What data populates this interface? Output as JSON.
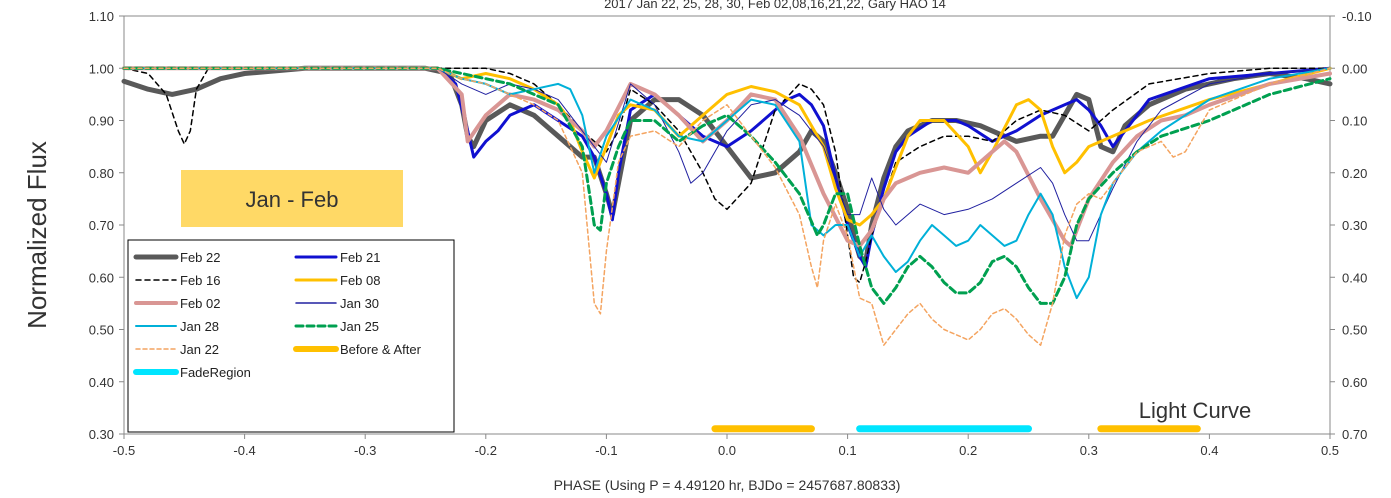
{
  "chart_data": {
    "type": "line",
    "title": "2017 Jan 22, 25, 28, 30, Feb 02,08,16,21,22, Gary HAO 14",
    "xlabel": "PHASE (Using P = 4.49120 hr, BJDo = 2457687.80833)",
    "ylabel": "Normalized Flux",
    "xlim": [
      -0.5,
      0.5
    ],
    "ylim": [
      0.3,
      1.1
    ],
    "y2lim": [
      -0.1,
      0.7
    ],
    "grid": false,
    "reference_line_y": 1.0,
    "x_tick_labels": [
      "-0.5",
      "-0.4",
      "-0.3",
      "-0.2",
      "-0.1",
      "0.0",
      "0.1",
      "0.2",
      "0.3",
      "0.4",
      "0.5"
    ],
    "y_tick_labels": [
      "0.30",
      "0.40",
      "0.50",
      "0.60",
      "0.70",
      "0.80",
      "0.90",
      "1.00",
      "1.10"
    ],
    "y2_tick_labels": [
      "0.70",
      "0.60",
      "0.50",
      "0.40",
      "0.30",
      "0.20",
      "0.10",
      "0.00",
      "-0.10"
    ],
    "legend_position": "bottom-left",
    "annotations": [
      {
        "text": "Jan - Feb",
        "x": -0.35,
        "y": 0.755,
        "box_color": "#FFD966"
      },
      {
        "text": "Light Curve",
        "x": 0.365,
        "y": 0.345
      }
    ],
    "bands": [
      {
        "name": "Before & After",
        "color": "#FFC000",
        "y": 0.31,
        "ranges": [
          [
            -0.01,
            0.07
          ],
          [
            0.31,
            0.39
          ]
        ]
      },
      {
        "name": "FadeRegion",
        "color": "#00E5FF",
        "y": 0.31,
        "ranges": [
          [
            0.11,
            0.25
          ]
        ]
      }
    ],
    "series": [
      {
        "name": "Feb 22",
        "color": "#595959",
        "width": 5,
        "dash": "",
        "x": [
          -0.5,
          -0.48,
          -0.46,
          -0.44,
          -0.42,
          -0.4,
          -0.35,
          -0.3,
          -0.25,
          -0.23,
          -0.22,
          -0.215,
          -0.21,
          -0.2,
          -0.18,
          -0.16,
          -0.14,
          -0.12,
          -0.11,
          -0.1,
          -0.095,
          -0.09,
          -0.08,
          -0.06,
          -0.04,
          -0.02,
          0.0,
          0.02,
          0.04,
          0.06,
          0.07,
          0.08,
          0.09,
          0.1,
          0.105,
          0.11,
          0.115,
          0.12,
          0.13,
          0.14,
          0.15,
          0.17,
          0.19,
          0.21,
          0.22,
          0.24,
          0.26,
          0.27,
          0.28,
          0.29,
          0.3,
          0.31,
          0.32,
          0.33,
          0.35,
          0.38,
          0.42,
          0.45,
          0.48,
          0.5
        ],
        "y": [
          0.975,
          0.96,
          0.95,
          0.96,
          0.98,
          0.99,
          1.0,
          1.0,
          1.0,
          0.99,
          0.93,
          0.87,
          0.85,
          0.9,
          0.93,
          0.91,
          0.87,
          0.83,
          0.83,
          0.76,
          0.72,
          0.78,
          0.9,
          0.94,
          0.94,
          0.91,
          0.85,
          0.79,
          0.8,
          0.84,
          0.88,
          0.86,
          0.8,
          0.73,
          0.68,
          0.64,
          0.63,
          0.7,
          0.79,
          0.85,
          0.88,
          0.9,
          0.9,
          0.89,
          0.88,
          0.86,
          0.87,
          0.87,
          0.91,
          0.95,
          0.94,
          0.85,
          0.84,
          0.89,
          0.93,
          0.96,
          0.98,
          0.99,
          0.98,
          0.97
        ]
      },
      {
        "name": "Feb 21",
        "color": "#1010D0",
        "width": 3,
        "dash": "",
        "x": [
          -0.5,
          -0.4,
          -0.3,
          -0.24,
          -0.225,
          -0.215,
          -0.21,
          -0.2,
          -0.19,
          -0.18,
          -0.16,
          -0.14,
          -0.12,
          -0.11,
          -0.1,
          -0.095,
          -0.09,
          -0.08,
          -0.06,
          -0.04,
          -0.02,
          0.0,
          0.02,
          0.04,
          0.05,
          0.06,
          0.07,
          0.08,
          0.09,
          0.1,
          0.11,
          0.115,
          0.12,
          0.13,
          0.14,
          0.15,
          0.17,
          0.19,
          0.2,
          0.22,
          0.24,
          0.26,
          0.28,
          0.29,
          0.3,
          0.31,
          0.32,
          0.35,
          0.4,
          0.45,
          0.5
        ],
        "y": [
          1.0,
          1.0,
          1.0,
          1.0,
          0.97,
          0.88,
          0.83,
          0.86,
          0.88,
          0.91,
          0.93,
          0.9,
          0.87,
          0.83,
          0.76,
          0.71,
          0.8,
          0.92,
          0.95,
          0.91,
          0.87,
          0.85,
          0.88,
          0.92,
          0.94,
          0.95,
          0.93,
          0.89,
          0.79,
          0.7,
          0.64,
          0.62,
          0.68,
          0.77,
          0.84,
          0.87,
          0.9,
          0.9,
          0.89,
          0.86,
          0.88,
          0.91,
          0.93,
          0.94,
          0.92,
          0.89,
          0.85,
          0.94,
          0.98,
          0.99,
          1.0
        ]
      },
      {
        "name": "Feb 16",
        "color": "#000000",
        "width": 1.5,
        "dash": "5,4",
        "x": [
          -0.5,
          -0.48,
          -0.465,
          -0.455,
          -0.45,
          -0.445,
          -0.44,
          -0.43,
          -0.4,
          -0.3,
          -0.25,
          -0.2,
          -0.18,
          -0.16,
          -0.14,
          -0.12,
          -0.1,
          -0.09,
          -0.08,
          -0.06,
          -0.04,
          -0.02,
          -0.01,
          0.0,
          0.02,
          0.04,
          0.06,
          0.07,
          0.08,
          0.09,
          0.1,
          0.105,
          0.11,
          0.115,
          0.12,
          0.13,
          0.14,
          0.16,
          0.18,
          0.2,
          0.22,
          0.24,
          0.26,
          0.28,
          0.3,
          0.32,
          0.35,
          0.4,
          0.45,
          0.5
        ],
        "y": [
          1.0,
          0.99,
          0.95,
          0.88,
          0.855,
          0.88,
          0.96,
          1.0,
          1.0,
          1.0,
          1.0,
          1.0,
          0.99,
          0.97,
          0.93,
          0.88,
          0.84,
          0.88,
          0.96,
          0.93,
          0.88,
          0.8,
          0.75,
          0.73,
          0.78,
          0.92,
          0.97,
          0.96,
          0.93,
          0.84,
          0.68,
          0.6,
          0.59,
          0.63,
          0.68,
          0.75,
          0.82,
          0.85,
          0.87,
          0.87,
          0.86,
          0.9,
          0.92,
          0.91,
          0.88,
          0.92,
          0.97,
          0.99,
          1.0,
          1.0
        ]
      },
      {
        "name": "Feb 08",
        "color": "#FFC000",
        "width": 3,
        "dash": "",
        "x": [
          -0.5,
          -0.4,
          -0.3,
          -0.24,
          -0.22,
          -0.2,
          -0.18,
          -0.16,
          -0.14,
          -0.13,
          -0.12,
          -0.11,
          -0.1,
          -0.09,
          -0.08,
          -0.06,
          -0.04,
          -0.02,
          0.0,
          0.02,
          0.04,
          0.06,
          0.08,
          0.09,
          0.1,
          0.11,
          0.12,
          0.13,
          0.14,
          0.15,
          0.16,
          0.18,
          0.2,
          0.21,
          0.22,
          0.24,
          0.25,
          0.26,
          0.27,
          0.28,
          0.29,
          0.3,
          0.31,
          0.33,
          0.35,
          0.4,
          0.45,
          0.5
        ],
        "y": [
          1.0,
          1.0,
          1.0,
          1.0,
          0.98,
          0.99,
          0.98,
          0.96,
          0.93,
          0.9,
          0.84,
          0.79,
          0.85,
          0.91,
          0.93,
          0.92,
          0.87,
          0.91,
          0.95,
          0.965,
          0.955,
          0.93,
          0.85,
          0.77,
          0.71,
          0.7,
          0.72,
          0.75,
          0.81,
          0.87,
          0.9,
          0.9,
          0.85,
          0.8,
          0.84,
          0.93,
          0.94,
          0.92,
          0.85,
          0.8,
          0.82,
          0.85,
          0.86,
          0.88,
          0.9,
          0.94,
          0.97,
          1.0
        ]
      },
      {
        "name": "Feb 02",
        "color": "#D99694",
        "width": 4,
        "dash": "",
        "x": [
          -0.5,
          -0.4,
          -0.3,
          -0.24,
          -0.22,
          -0.215,
          -0.2,
          -0.18,
          -0.16,
          -0.14,
          -0.12,
          -0.11,
          -0.1,
          -0.08,
          -0.06,
          -0.04,
          -0.02,
          0.0,
          0.02,
          0.04,
          0.06,
          0.08,
          0.1,
          0.11,
          0.12,
          0.13,
          0.14,
          0.15,
          0.16,
          0.18,
          0.2,
          0.22,
          0.23,
          0.24,
          0.26,
          0.28,
          0.285,
          0.29,
          0.3,
          0.32,
          0.34,
          0.36,
          0.38,
          0.4,
          0.45,
          0.5
        ],
        "y": [
          1.0,
          1.0,
          1.0,
          1.0,
          0.95,
          0.86,
          0.91,
          0.95,
          0.94,
          0.92,
          0.88,
          0.85,
          0.88,
          0.97,
          0.95,
          0.91,
          0.86,
          0.9,
          0.95,
          0.94,
          0.87,
          0.76,
          0.67,
          0.66,
          0.69,
          0.75,
          0.78,
          0.79,
          0.8,
          0.81,
          0.8,
          0.84,
          0.86,
          0.84,
          0.75,
          0.67,
          0.66,
          0.69,
          0.75,
          0.82,
          0.87,
          0.9,
          0.91,
          0.93,
          0.97,
          0.99
        ]
      },
      {
        "name": "Jan 30",
        "color": "#2020A0",
        "width": 1,
        "dash": "",
        "x": [
          -0.5,
          -0.4,
          -0.3,
          -0.24,
          -0.22,
          -0.2,
          -0.18,
          -0.16,
          -0.14,
          -0.12,
          -0.1,
          -0.08,
          -0.06,
          -0.04,
          -0.03,
          -0.02,
          0.0,
          0.02,
          0.04,
          0.06,
          0.08,
          0.1,
          0.11,
          0.12,
          0.13,
          0.14,
          0.15,
          0.16,
          0.18,
          0.2,
          0.22,
          0.24,
          0.26,
          0.27,
          0.28,
          0.29,
          0.3,
          0.32,
          0.34,
          0.36,
          0.4,
          0.45,
          0.5
        ],
        "y": [
          1.0,
          1.0,
          1.0,
          1.0,
          0.97,
          0.95,
          0.97,
          0.96,
          0.94,
          0.88,
          0.82,
          0.97,
          0.93,
          0.84,
          0.78,
          0.8,
          0.88,
          0.93,
          0.94,
          0.91,
          0.85,
          0.72,
          0.72,
          0.79,
          0.73,
          0.7,
          0.72,
          0.74,
          0.72,
          0.73,
          0.75,
          0.78,
          0.81,
          0.78,
          0.72,
          0.67,
          0.67,
          0.77,
          0.86,
          0.92,
          0.97,
          0.99,
          1.0
        ]
      },
      {
        "name": "Jan 28",
        "color": "#00B0D8",
        "width": 2,
        "dash": "",
        "x": [
          -0.5,
          -0.4,
          -0.3,
          -0.24,
          -0.22,
          -0.2,
          -0.18,
          -0.16,
          -0.14,
          -0.13,
          -0.12,
          -0.11,
          -0.1,
          -0.08,
          -0.06,
          -0.04,
          -0.02,
          0.0,
          0.02,
          0.04,
          0.06,
          0.07,
          0.08,
          0.09,
          0.1,
          0.11,
          0.12,
          0.13,
          0.14,
          0.15,
          0.16,
          0.17,
          0.18,
          0.19,
          0.2,
          0.21,
          0.22,
          0.23,
          0.24,
          0.25,
          0.26,
          0.27,
          0.28,
          0.29,
          0.3,
          0.31,
          0.32,
          0.34,
          0.36,
          0.4,
          0.45,
          0.5
        ],
        "y": [
          1.0,
          1.0,
          1.0,
          1.0,
          0.98,
          0.97,
          0.95,
          0.96,
          0.97,
          0.96,
          0.91,
          0.8,
          0.87,
          0.94,
          0.92,
          0.87,
          0.86,
          0.9,
          0.94,
          0.93,
          0.86,
          0.7,
          0.68,
          0.7,
          0.7,
          0.64,
          0.68,
          0.64,
          0.61,
          0.63,
          0.67,
          0.7,
          0.68,
          0.66,
          0.67,
          0.7,
          0.68,
          0.66,
          0.67,
          0.72,
          0.76,
          0.72,
          0.62,
          0.56,
          0.6,
          0.72,
          0.78,
          0.84,
          0.88,
          0.94,
          0.98,
          1.0
        ]
      },
      {
        "name": "Jan 25",
        "color": "#00A050",
        "width": 3,
        "dash": "7,4",
        "x": [
          -0.5,
          -0.4,
          -0.3,
          -0.24,
          -0.22,
          -0.2,
          -0.18,
          -0.16,
          -0.14,
          -0.12,
          -0.11,
          -0.105,
          -0.1,
          -0.09,
          -0.08,
          -0.06,
          -0.04,
          -0.02,
          0.0,
          0.02,
          0.04,
          0.06,
          0.075,
          0.08,
          0.09,
          0.1,
          0.11,
          0.12,
          0.13,
          0.14,
          0.15,
          0.16,
          0.17,
          0.18,
          0.19,
          0.2,
          0.21,
          0.22,
          0.23,
          0.24,
          0.25,
          0.26,
          0.27,
          0.28,
          0.29,
          0.3,
          0.32,
          0.34,
          0.36,
          0.4,
          0.45,
          0.5
        ],
        "y": [
          1.0,
          1.0,
          1.0,
          1.0,
          0.99,
          0.98,
          0.97,
          0.95,
          0.93,
          0.85,
          0.7,
          0.69,
          0.78,
          0.85,
          0.9,
          0.9,
          0.86,
          0.89,
          0.91,
          0.87,
          0.82,
          0.76,
          0.68,
          0.7,
          0.76,
          0.76,
          0.66,
          0.58,
          0.55,
          0.58,
          0.62,
          0.64,
          0.62,
          0.59,
          0.57,
          0.57,
          0.59,
          0.63,
          0.64,
          0.62,
          0.58,
          0.55,
          0.55,
          0.6,
          0.7,
          0.75,
          0.8,
          0.84,
          0.87,
          0.9,
          0.95,
          0.98
        ]
      },
      {
        "name": "Jan 22",
        "color": "#F4A460",
        "width": 1.5,
        "dash": "4,3",
        "x": [
          -0.5,
          -0.4,
          -0.3,
          -0.24,
          -0.22,
          -0.2,
          -0.18,
          -0.16,
          -0.14,
          -0.12,
          -0.11,
          -0.105,
          -0.1,
          -0.09,
          -0.08,
          -0.06,
          -0.04,
          -0.02,
          0.0,
          0.02,
          0.04,
          0.06,
          0.07,
          0.075,
          0.08,
          0.09,
          0.1,
          0.11,
          0.12,
          0.13,
          0.14,
          0.15,
          0.16,
          0.17,
          0.18,
          0.19,
          0.2,
          0.21,
          0.22,
          0.23,
          0.24,
          0.25,
          0.26,
          0.27,
          0.28,
          0.29,
          0.3,
          0.31,
          0.32,
          0.34,
          0.36,
          0.37,
          0.38,
          0.4,
          0.45,
          0.5
        ],
        "y": [
          1.0,
          1.0,
          1.0,
          1.0,
          0.98,
          0.97,
          0.95,
          0.93,
          0.9,
          0.8,
          0.55,
          0.53,
          0.65,
          0.82,
          0.87,
          0.88,
          0.85,
          0.9,
          0.93,
          0.87,
          0.81,
          0.72,
          0.62,
          0.58,
          0.67,
          0.74,
          0.68,
          0.56,
          0.55,
          0.47,
          0.5,
          0.53,
          0.55,
          0.52,
          0.5,
          0.49,
          0.48,
          0.5,
          0.53,
          0.54,
          0.52,
          0.49,
          0.47,
          0.55,
          0.68,
          0.74,
          0.76,
          0.75,
          0.78,
          0.84,
          0.86,
          0.83,
          0.84,
          0.92,
          0.97,
          1.0
        ]
      }
    ]
  }
}
